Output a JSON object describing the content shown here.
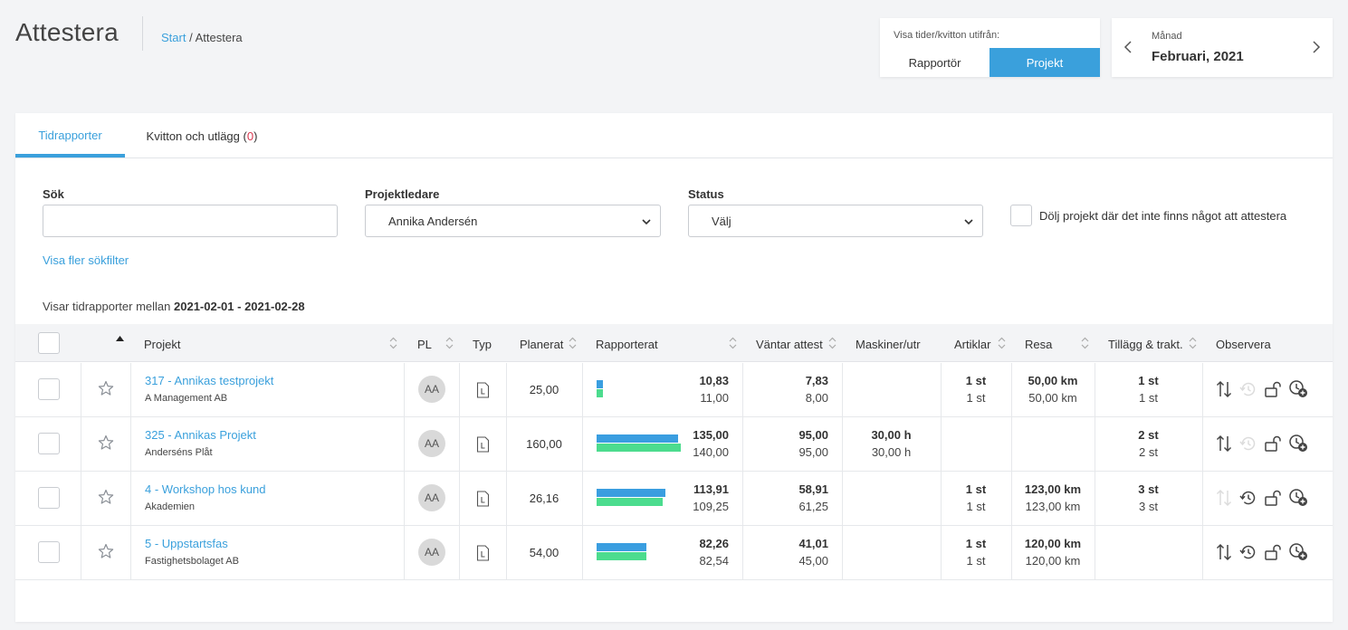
{
  "header": {
    "title": "Attestera",
    "breadcrumb_start": "Start",
    "breadcrumb_sep": "/",
    "breadcrumb_current": "Attestera"
  },
  "view_toggle": {
    "label": "Visa tider/kvitton utifrån:",
    "options": [
      "Rapportör",
      "Projekt"
    ],
    "selected": "Projekt"
  },
  "month_picker": {
    "label": "Månad",
    "value": "Februari, 2021"
  },
  "tabs": {
    "time_reports": "Tidrapporter",
    "receipts": "Kvitton och utlägg",
    "receipts_count": "0"
  },
  "filters": {
    "search_label": "Sök",
    "search_value": "",
    "manager_label": "Projektledare",
    "manager_value": "Annika Andersén",
    "status_label": "Status",
    "status_value": "Välj",
    "hide_label": "Dölj projekt där det inte finns något att attestera",
    "more_filters": "Visa fler sökfilter"
  },
  "showing": {
    "prefix": "Visar tidrapporter mellan",
    "range": "2021-02-01 - 2021-02-28"
  },
  "columns": {
    "project": "Projekt",
    "pl": "PL",
    "type": "Typ",
    "planned": "Planerat",
    "reported": "Rapporterat",
    "pending": "Väntar attest",
    "machines": "Maskiner/utr",
    "articles": "Artiklar",
    "travel": "Resa",
    "extras": "Tillägg & trakt.",
    "notes": "Observera"
  },
  "rows": [
    {
      "name": "317 - Annikas testprojekt",
      "client": "A Management AB",
      "pl": "AA",
      "planned": "25,00",
      "reported_top": "10,83",
      "reported_bottom": "11,00",
      "reported_a": 10.83,
      "reported_b": 11.0,
      "pending_top": "7,83",
      "pending_bottom": "8,00",
      "machines_top": "",
      "machines_bottom": "",
      "articles_top": "1 st",
      "articles_bottom": "1 st",
      "travel_top": "50,00 km",
      "travel_bottom": "50,00 km",
      "extras_top": "1 st",
      "extras_bottom": "1 st",
      "sort_enabled": true,
      "history_enabled": false
    },
    {
      "name": "325 - Annikas Projekt",
      "client": "Anderséns Plåt",
      "pl": "AA",
      "planned": "160,00",
      "reported_top": "135,00",
      "reported_bottom": "140,00",
      "reported_a": 135.0,
      "reported_b": 140.0,
      "pending_top": "95,00",
      "pending_bottom": "95,00",
      "machines_top": "30,00 h",
      "machines_bottom": "30,00 h",
      "articles_top": "",
      "articles_bottom": "",
      "travel_top": "",
      "travel_bottom": "",
      "extras_top": "2 st",
      "extras_bottom": "2 st",
      "sort_enabled": true,
      "history_enabled": false
    },
    {
      "name": "4 - Workshop hos kund",
      "client": "Akademien",
      "pl": "AA",
      "planned": "26,16",
      "reported_top": "113,91",
      "reported_bottom": "109,25",
      "reported_a": 113.91,
      "reported_b": 109.25,
      "pending_top": "58,91",
      "pending_bottom": "61,25",
      "machines_top": "",
      "machines_bottom": "",
      "articles_top": "1 st",
      "articles_bottom": "1 st",
      "travel_top": "123,00 km",
      "travel_bottom": "123,00 km",
      "extras_top": "3 st",
      "extras_bottom": "3 st",
      "sort_enabled": false,
      "history_enabled": true
    },
    {
      "name": "5 - Uppstartsfas",
      "client": "Fastighetsbolaget AB",
      "pl": "AA",
      "planned": "54,00",
      "reported_top": "82,26",
      "reported_bottom": "82,54",
      "reported_a": 82.26,
      "reported_b": 82.54,
      "pending_top": "41,01",
      "pending_bottom": "45,00",
      "machines_top": "",
      "machines_bottom": "",
      "articles_top": "1 st",
      "articles_bottom": "1 st",
      "travel_top": "120,00 km",
      "travel_bottom": "120,00 km",
      "extras_top": "",
      "extras_bottom": "",
      "sort_enabled": true,
      "history_enabled": true
    }
  ],
  "colors": {
    "accent": "#3aa0dc",
    "bar_blue": "#3a9ee0",
    "bar_green": "#4cdc8e",
    "badge_red": "#d9354e"
  }
}
